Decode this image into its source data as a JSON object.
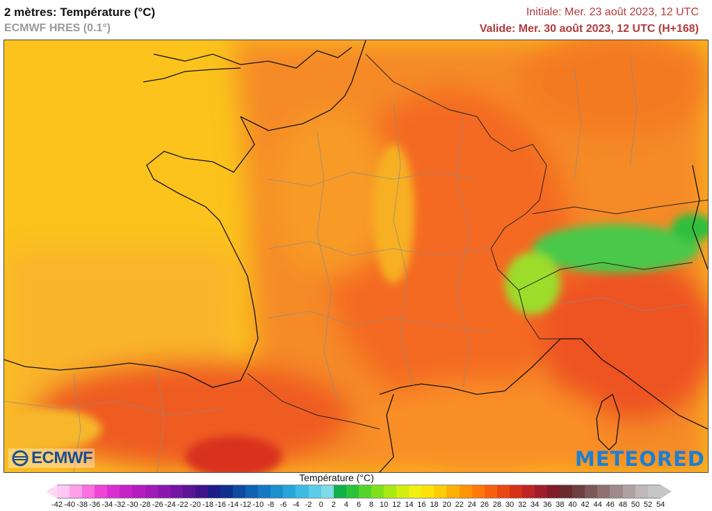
{
  "header": {
    "title": "2 mètres: Température (°C)",
    "model": "ECMWF HRES (0.1°)",
    "initial": "Initiale: Mer. 23 août 2023, 12 UTC",
    "valid": "Valide: Mer. 30 août 2023, 12 UTC (H+168)"
  },
  "logos": {
    "left": "ECMWF",
    "right": "METEORED"
  },
  "legend": {
    "title": "Température (°C)",
    "ticks": [
      "-42",
      "-40",
      "-38",
      "-36",
      "-34",
      "-32",
      "-30",
      "-28",
      "-26",
      "-24",
      "-22",
      "-20",
      "-18",
      "-16",
      "-14",
      "-12",
      "-10",
      "-8",
      "-6",
      "-4",
      "-2",
      "0",
      "2",
      "4",
      "6",
      "8",
      "10",
      "12",
      "14",
      "16",
      "18",
      "20",
      "22",
      "24",
      "26",
      "28",
      "30",
      "32",
      "34",
      "36",
      "38",
      "40",
      "42",
      "44",
      "46",
      "48",
      "50",
      "52",
      "54"
    ],
    "colors": [
      "#ffc8f2",
      "#ff9ee9",
      "#fb6fe1",
      "#ef44d8",
      "#db2ed0",
      "#c722c8",
      "#b41cc0",
      "#9f1ab8",
      "#8a18ae",
      "#7416a4",
      "#5c1496",
      "#3e148a",
      "#1e1c88",
      "#10308f",
      "#0e4aa0",
      "#1062b2",
      "#1479c2",
      "#1a90cf",
      "#27a6da",
      "#3dbbe2",
      "#5ccde8",
      "#7fdbe8",
      "#12b04a",
      "#2cc23a",
      "#52d42c",
      "#7fe11e",
      "#aaea14",
      "#d2ef10",
      "#f2f010",
      "#ffe20a",
      "#ffcd08",
      "#ffb006",
      "#ff9406",
      "#ff7a0a",
      "#f7600e",
      "#eb4712",
      "#d83018",
      "#bf2424",
      "#a01e2a",
      "#7f1c28",
      "#6a2a2e",
      "#6e4040",
      "#7e5858",
      "#8e7070",
      "#9e8a8a",
      "#b0a2a2",
      "#c0b8b8",
      "#c6c6c6"
    ]
  }
}
